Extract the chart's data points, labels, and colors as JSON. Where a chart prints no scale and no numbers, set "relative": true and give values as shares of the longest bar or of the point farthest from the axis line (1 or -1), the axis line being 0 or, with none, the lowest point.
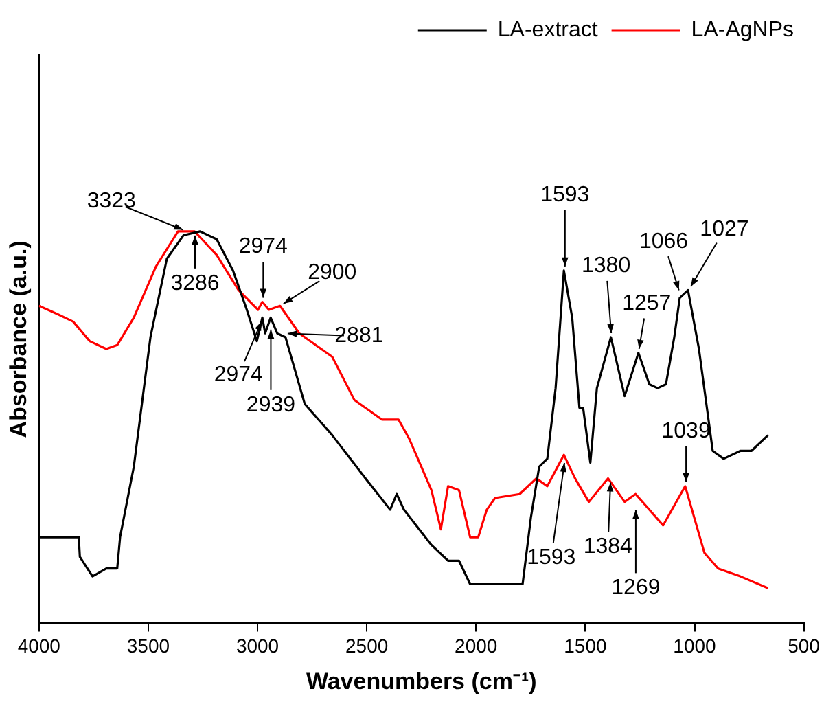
{
  "chart_data": {
    "type": "line",
    "relative": true,
    "xlabel": "Wavenumbers (cm⁻¹)",
    "ylabel": "Absorbance (a.u.)",
    "xlim": [
      4000,
      500
    ],
    "xticks": [
      4000,
      3500,
      3000,
      2500,
      2000,
      1500,
      1000,
      500
    ],
    "grid": false,
    "legend": "top right",
    "marker": "none",
    "line_style": "solid",
    "series": [
      {
        "name": "LA-extract",
        "color": "#000000",
        "x": [
          4000,
          3818,
          3813,
          3755,
          3692,
          3642,
          3629,
          3566,
          3490,
          3415,
          3339,
          3263,
          3187,
          3112,
          3049,
          3003,
          2978,
          2965,
          2940,
          2910,
          2872,
          2784,
          2658,
          2506,
          2393,
          2363,
          2330,
          2204,
          2128,
          2078,
          2027,
          1951,
          1825,
          1787,
          1749,
          1711,
          1674,
          1636,
          1598,
          1560,
          1527,
          1510,
          1477,
          1447,
          1383,
          1320,
          1257,
          1207,
          1169,
          1131,
          1093,
          1068,
          1030,
          980,
          917,
          867,
          791,
          740,
          664
        ],
        "values": [
          0.22,
          0.22,
          0.17,
          0.12,
          0.14,
          0.14,
          0.22,
          0.4,
          0.73,
          0.93,
          0.99,
          1.0,
          0.98,
          0.9,
          0.8,
          0.72,
          0.78,
          0.74,
          0.78,
          0.74,
          0.73,
          0.56,
          0.48,
          0.37,
          0.29,
          0.33,
          0.29,
          0.2,
          0.16,
          0.16,
          0.1,
          0.1,
          0.1,
          0.1,
          0.27,
          0.4,
          0.42,
          0.6,
          0.9,
          0.78,
          0.55,
          0.55,
          0.41,
          0.6,
          0.73,
          0.58,
          0.69,
          0.61,
          0.6,
          0.61,
          0.73,
          0.83,
          0.85,
          0.7,
          0.44,
          0.42,
          0.44,
          0.44,
          0.48
        ]
      },
      {
        "name": "LA-AgNPs",
        "color": "#ff0000",
        "x": [
          4000,
          3919,
          3844,
          3768,
          3692,
          3642,
          3566,
          3465,
          3364,
          3288,
          3187,
          3087,
          2998,
          2978,
          2948,
          2897,
          2809,
          2658,
          2557,
          2431,
          2355,
          2305,
          2204,
          2161,
          2128,
          2078,
          2027,
          1990,
          1951,
          1913,
          1800,
          1724,
          1674,
          1598,
          1547,
          1484,
          1396,
          1320,
          1270,
          1144,
          1043,
          955,
          892,
          791,
          664
        ],
        "values": [
          0.81,
          0.79,
          0.77,
          0.72,
          0.7,
          0.71,
          0.78,
          0.91,
          1.0,
          1.0,
          0.94,
          0.85,
          0.8,
          0.82,
          0.8,
          0.81,
          0.74,
          0.68,
          0.57,
          0.52,
          0.52,
          0.47,
          0.34,
          0.24,
          0.35,
          0.34,
          0.22,
          0.22,
          0.29,
          0.32,
          0.33,
          0.37,
          0.35,
          0.43,
          0.37,
          0.31,
          0.37,
          0.31,
          0.33,
          0.25,
          0.35,
          0.18,
          0.14,
          0.12,
          0.09
        ]
      }
    ],
    "annotations": [
      {
        "text": "3323",
        "x": 3323,
        "y": 1.0
      },
      {
        "text": "3286",
        "x": 3286,
        "y": 1.0
      },
      {
        "text": "2974",
        "x": 2974,
        "y": 0.82
      },
      {
        "text": "2900",
        "x": 2897,
        "y": 0.81
      },
      {
        "text": "2881",
        "x": 2881,
        "y": 0.74
      },
      {
        "text": "2974",
        "x": 2974,
        "y": 0.78
      },
      {
        "text": "2939",
        "x": 2939,
        "y": 0.76
      },
      {
        "text": "1593",
        "x": 1593,
        "y": 0.9
      },
      {
        "text": "1380",
        "x": 1380,
        "y": 0.73
      },
      {
        "text": "1257",
        "x": 1257,
        "y": 0.69
      },
      {
        "text": "1066",
        "x": 1066,
        "y": 0.84
      },
      {
        "text": "1027",
        "x": 1027,
        "y": 0.85
      },
      {
        "text": "1039",
        "x": 1039,
        "y": 0.35
      },
      {
        "text": "1593",
        "x": 1593,
        "y": 0.42
      },
      {
        "text": "1384",
        "x": 1384,
        "y": 0.37
      },
      {
        "text": "1269",
        "x": 1269,
        "y": 0.3
      }
    ]
  }
}
